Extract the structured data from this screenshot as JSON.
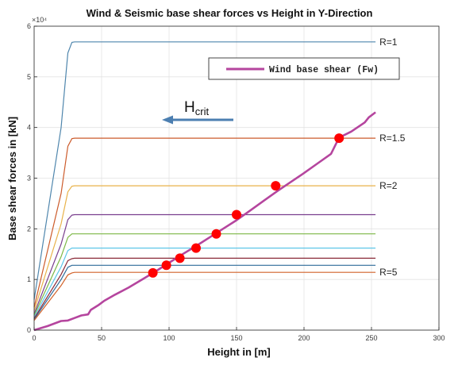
{
  "chart_data": {
    "type": "line",
    "title": "Wind & Seismic base shear forces vs Height in Y-Direction",
    "xlabel": "Height in [m]",
    "ylabel": "Base shear forces in [kN]",
    "y_multiplier": "×10⁴",
    "xlim": [
      0,
      300
    ],
    "ylim": [
      0,
      60000
    ],
    "x_ticks": [
      0,
      50,
      100,
      150,
      200,
      250,
      300
    ],
    "y_ticks": [
      0,
      10000,
      20000,
      30000,
      40000,
      50000,
      60000
    ],
    "y_tick_labels": [
      "0",
      "1",
      "2",
      "3",
      "4",
      "5",
      "6"
    ],
    "grid": true,
    "legend": {
      "position": "top-right",
      "entries": [
        "Wind base shear (Fw)"
      ]
    },
    "annotation": {
      "text": "H",
      "subscript": "crit",
      "arrow": "left"
    },
    "wind_series": {
      "name": "Wind base shear (Fw)",
      "color": "#b5459e",
      "x": [
        0,
        10,
        20,
        25,
        30,
        35,
        40,
        42,
        48,
        52,
        60,
        70,
        80,
        90,
        100,
        110,
        120,
        130,
        140,
        150,
        160,
        170,
        180,
        190,
        200,
        210,
        220,
        226,
        235,
        245,
        248,
        253
      ],
      "y": [
        0,
        800,
        1800,
        1900,
        2400,
        2900,
        3100,
        4000,
        5000,
        5800,
        7000,
        8400,
        10000,
        11600,
        13300,
        15000,
        16600,
        18300,
        20000,
        21700,
        23600,
        25500,
        27400,
        29200,
        31000,
        32900,
        34800,
        38000,
        39200,
        41000,
        42000,
        43000
      ]
    },
    "seismic_series": [
      {
        "label": "R=1",
        "color": "#4f86ad",
        "x": [
          0,
          20,
          25,
          28,
          30,
          253
        ],
        "y": [
          6000,
          40000,
          54700,
          56800,
          56900,
          56900
        ]
      },
      {
        "label": "R=1.5",
        "color": "#cc5b2b",
        "x": [
          0,
          20,
          25,
          28,
          30,
          253
        ],
        "y": [
          4500,
          27000,
          36300,
          37800,
          37900,
          37900
        ]
      },
      {
        "label": "R=2",
        "color": "#e8b24a",
        "x": [
          0,
          20,
          25,
          28,
          30,
          253
        ],
        "y": [
          3800,
          21000,
          27300,
          28400,
          28500,
          28500
        ]
      },
      {
        "label": "",
        "color": "#7a3f8e",
        "x": [
          0,
          20,
          25,
          28,
          30,
          253
        ],
        "y": [
          3200,
          17000,
          21800,
          22700,
          22800,
          22800
        ]
      },
      {
        "label": "",
        "color": "#7cb845",
        "x": [
          0,
          20,
          25,
          28,
          30,
          253
        ],
        "y": [
          2900,
          14500,
          18300,
          19000,
          19000,
          19000
        ]
      },
      {
        "label": "",
        "color": "#5ec6e8",
        "x": [
          0,
          20,
          25,
          28,
          30,
          253
        ],
        "y": [
          2600,
          12500,
          15700,
          16200,
          16200,
          16200
        ]
      },
      {
        "label": "",
        "color": "#8a2a38",
        "x": [
          0,
          20,
          25,
          28,
          30,
          253
        ],
        "y": [
          2300,
          11000,
          13700,
          14100,
          14200,
          14200
        ]
      },
      {
        "label": "",
        "color": "#2f6b9a",
        "x": [
          0,
          20,
          25,
          28,
          30,
          253
        ],
        "y": [
          2100,
          10000,
          12400,
          12800,
          12800,
          12800
        ]
      },
      {
        "label": "R=5",
        "color": "#d2622a",
        "x": [
          0,
          20,
          25,
          28,
          30,
          253
        ],
        "y": [
          1900,
          8800,
          10900,
          11300,
          11400,
          11400
        ]
      }
    ],
    "intersections": {
      "color": "#ff0000",
      "x": [
        88,
        98,
        108,
        120,
        135,
        150,
        179,
        226
      ],
      "y": [
        11300,
        12800,
        14200,
        16200,
        19000,
        22800,
        28500,
        37900
      ]
    }
  }
}
